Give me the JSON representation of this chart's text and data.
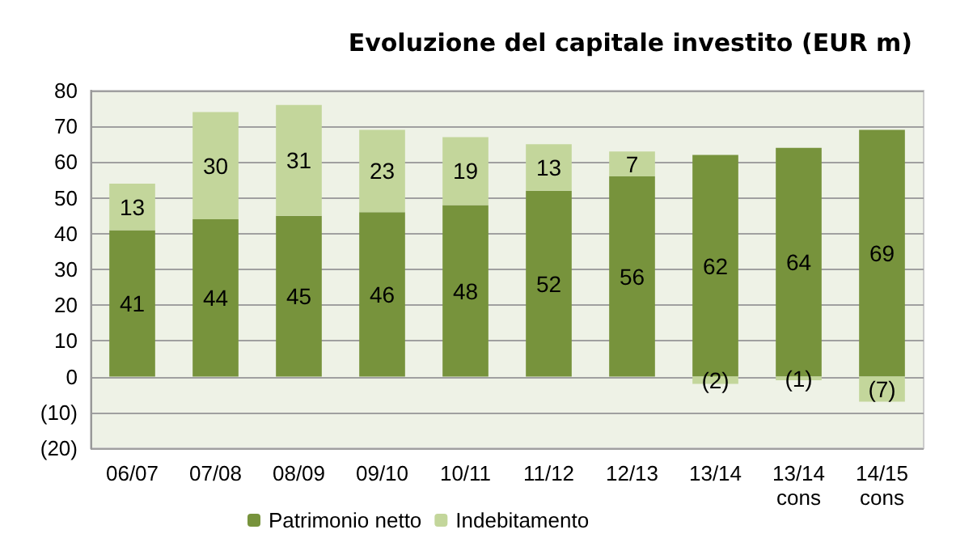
{
  "chart_data": {
    "type": "bar",
    "title": "Evoluzione del capitale investito (EUR m)",
    "stacked": true,
    "categories": [
      "06/07",
      "07/08",
      "08/09",
      "09/10",
      "10/11",
      "11/12",
      "12/13",
      "13/14",
      "13/14\ncons",
      "14/15\ncons"
    ],
    "series": [
      {
        "name": "Patrimonio netto",
        "color": "#77933c",
        "values": [
          41,
          44,
          45,
          46,
          48,
          52,
          56,
          62,
          64,
          69
        ],
        "value_labels": [
          "41",
          "44",
          "45",
          "46",
          "48",
          "52",
          "56",
          "62",
          "64",
          "69"
        ]
      },
      {
        "name": "Indebitamento",
        "color": "#c3d69b",
        "values": [
          13,
          30,
          31,
          23,
          19,
          13,
          7,
          -2,
          -1,
          -7
        ],
        "value_labels": [
          "13",
          "30",
          "31",
          "23",
          "19",
          "13",
          "7",
          "(2)",
          "(1)",
          "(7)"
        ]
      }
    ],
    "ylim": [
      -20,
      80
    ],
    "yticks": [
      {
        "value": -20,
        "label": "(20)"
      },
      {
        "value": -10,
        "label": "(10)"
      },
      0,
      10,
      20,
      30,
      40,
      50,
      60,
      70,
      80
    ],
    "grid": "y",
    "legend": "bottom"
  }
}
